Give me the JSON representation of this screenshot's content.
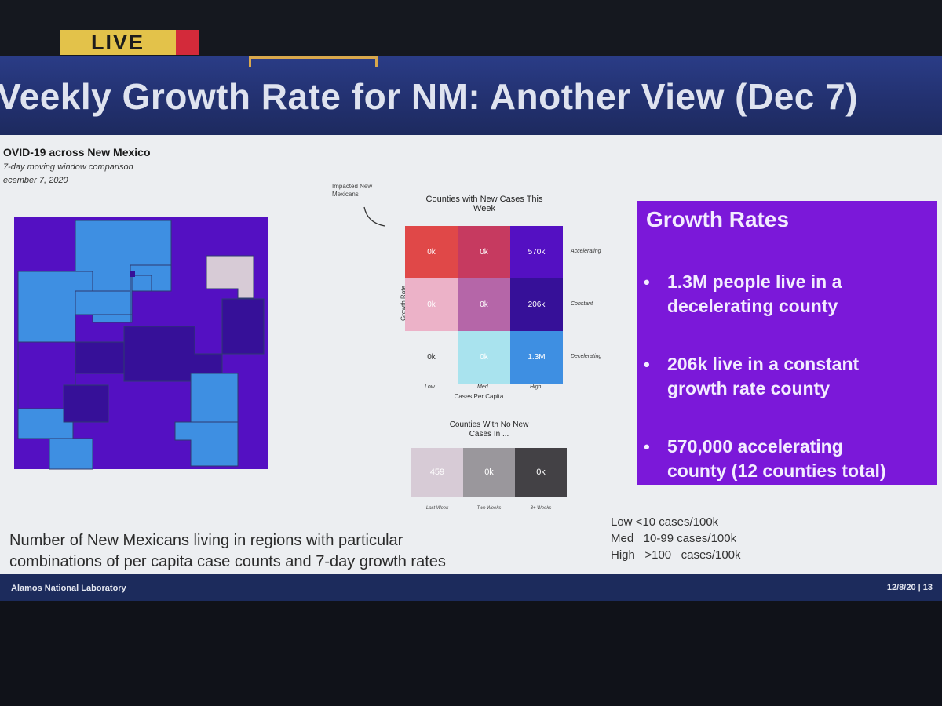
{
  "live_badge": "LIVE",
  "slide": {
    "title": "Veekly Growth Rate for NM: Another View (Dec 7)",
    "footer_left": "Alamos National Laboratory",
    "footer_right": "12/8/20 | 13"
  },
  "map": {
    "title": "OVID-19 across New Mexico",
    "subtitle": "7-day moving window comparison",
    "date": "ecember 7, 2020"
  },
  "matrix": {
    "annotation": "Impacted New Mexicans",
    "title": "Counties with New Cases This Week",
    "y_axis": "Growth Rate",
    "x_axis": "Cases Per Capita",
    "row_labels": [
      "Accelerating",
      "Constant",
      "Decelerating"
    ],
    "col_labels": [
      "Low",
      "Med",
      "High"
    ],
    "cells": [
      [
        "0k",
        "0k",
        "570k"
      ],
      [
        "0k",
        "0k",
        "206k"
      ],
      [
        "0k",
        "0k",
        "1.3M"
      ]
    ],
    "colors": {
      "accel": [
        "#e04848",
        "#c63a60",
        "#5410c2"
      ],
      "const": [
        "#ecb2c8",
        "#b566a8",
        "#361098"
      ],
      "decel": [
        "#eceef1",
        "#a9e3ee",
        "#3e8fe2"
      ]
    }
  },
  "no_new_cases": {
    "title": "Counties With No New Cases In ...",
    "cells": [
      "459",
      "0k",
      "0k"
    ],
    "labels": [
      "Last Week",
      "Two Weeks",
      "3+ Weeks"
    ],
    "colors": [
      "#d7cbd6",
      "#9a979c",
      "#434145"
    ]
  },
  "growth_rates": {
    "title": "Growth Rates",
    "bullet_char": "•",
    "bullets": [
      {
        "line1": "1.3M  people live in a",
        "line2": "decelerating county"
      },
      {
        "line1": "206k live in a constant",
        "line2": "growth rate county"
      },
      {
        "line1": "570,000 accelerating",
        "line2": "county (12 counties total)"
      }
    ],
    "bg_color": "#7b18d9"
  },
  "caption": {
    "line1": "Number of New Mexicans living in regions with particular",
    "line2": "combinations of per capita case counts and 7-day growth rates"
  },
  "legend": {
    "low": "Low <10 cases/100k",
    "med": "Med   10-99 cases/100k",
    "high": "High   >100   cases/100k"
  },
  "map_colors": {
    "accelerating": "#5410c2",
    "constant": "#361098",
    "decelerating": "#3e8fe2",
    "no_new_cases": "#d7cbd6"
  }
}
